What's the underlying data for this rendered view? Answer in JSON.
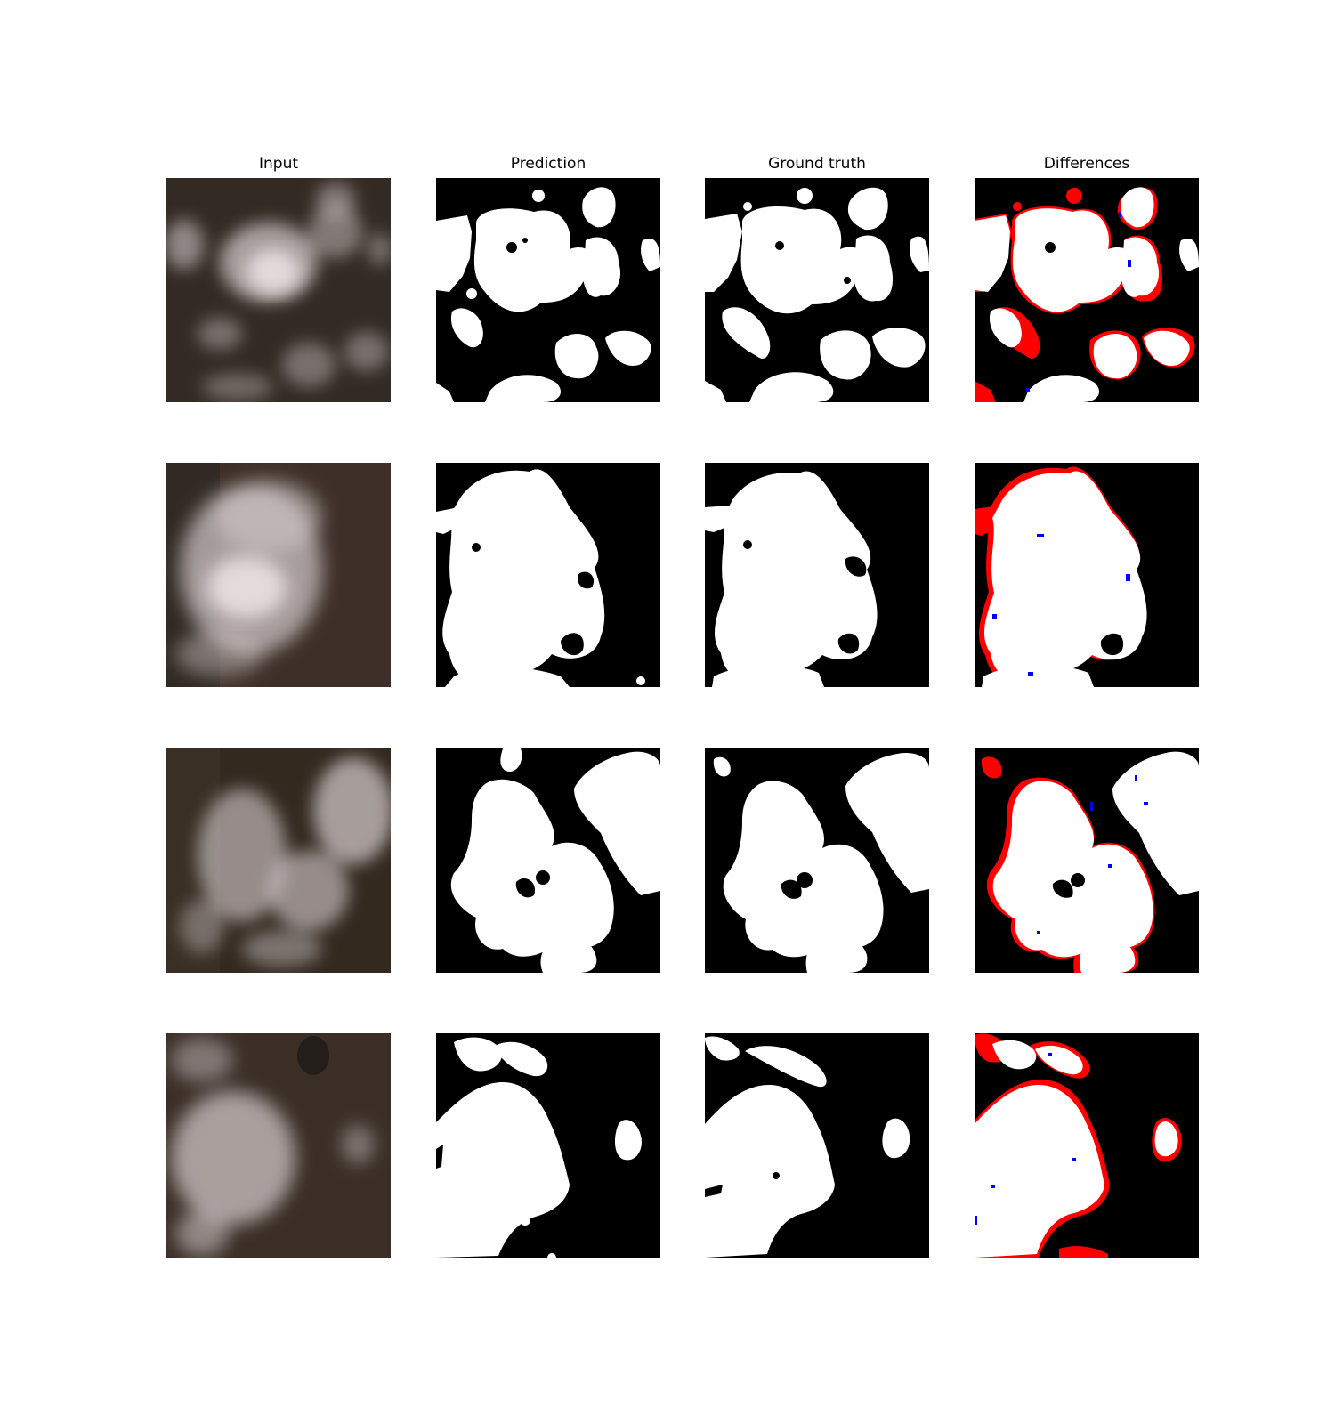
{
  "columns": {
    "input": "Input",
    "prediction": "Prediction",
    "ground_truth": "Ground truth",
    "differences": "Differences"
  },
  "colors": {
    "background": "#ffffff",
    "mask_background": "#000000",
    "mask_cloud": "#ffffff",
    "difference_false_positive": "#ff0000",
    "difference_false_negative": "#0000ff",
    "input_terrain": "#3a2e26",
    "input_cloud": "#e8dde0"
  },
  "rows": 4
}
